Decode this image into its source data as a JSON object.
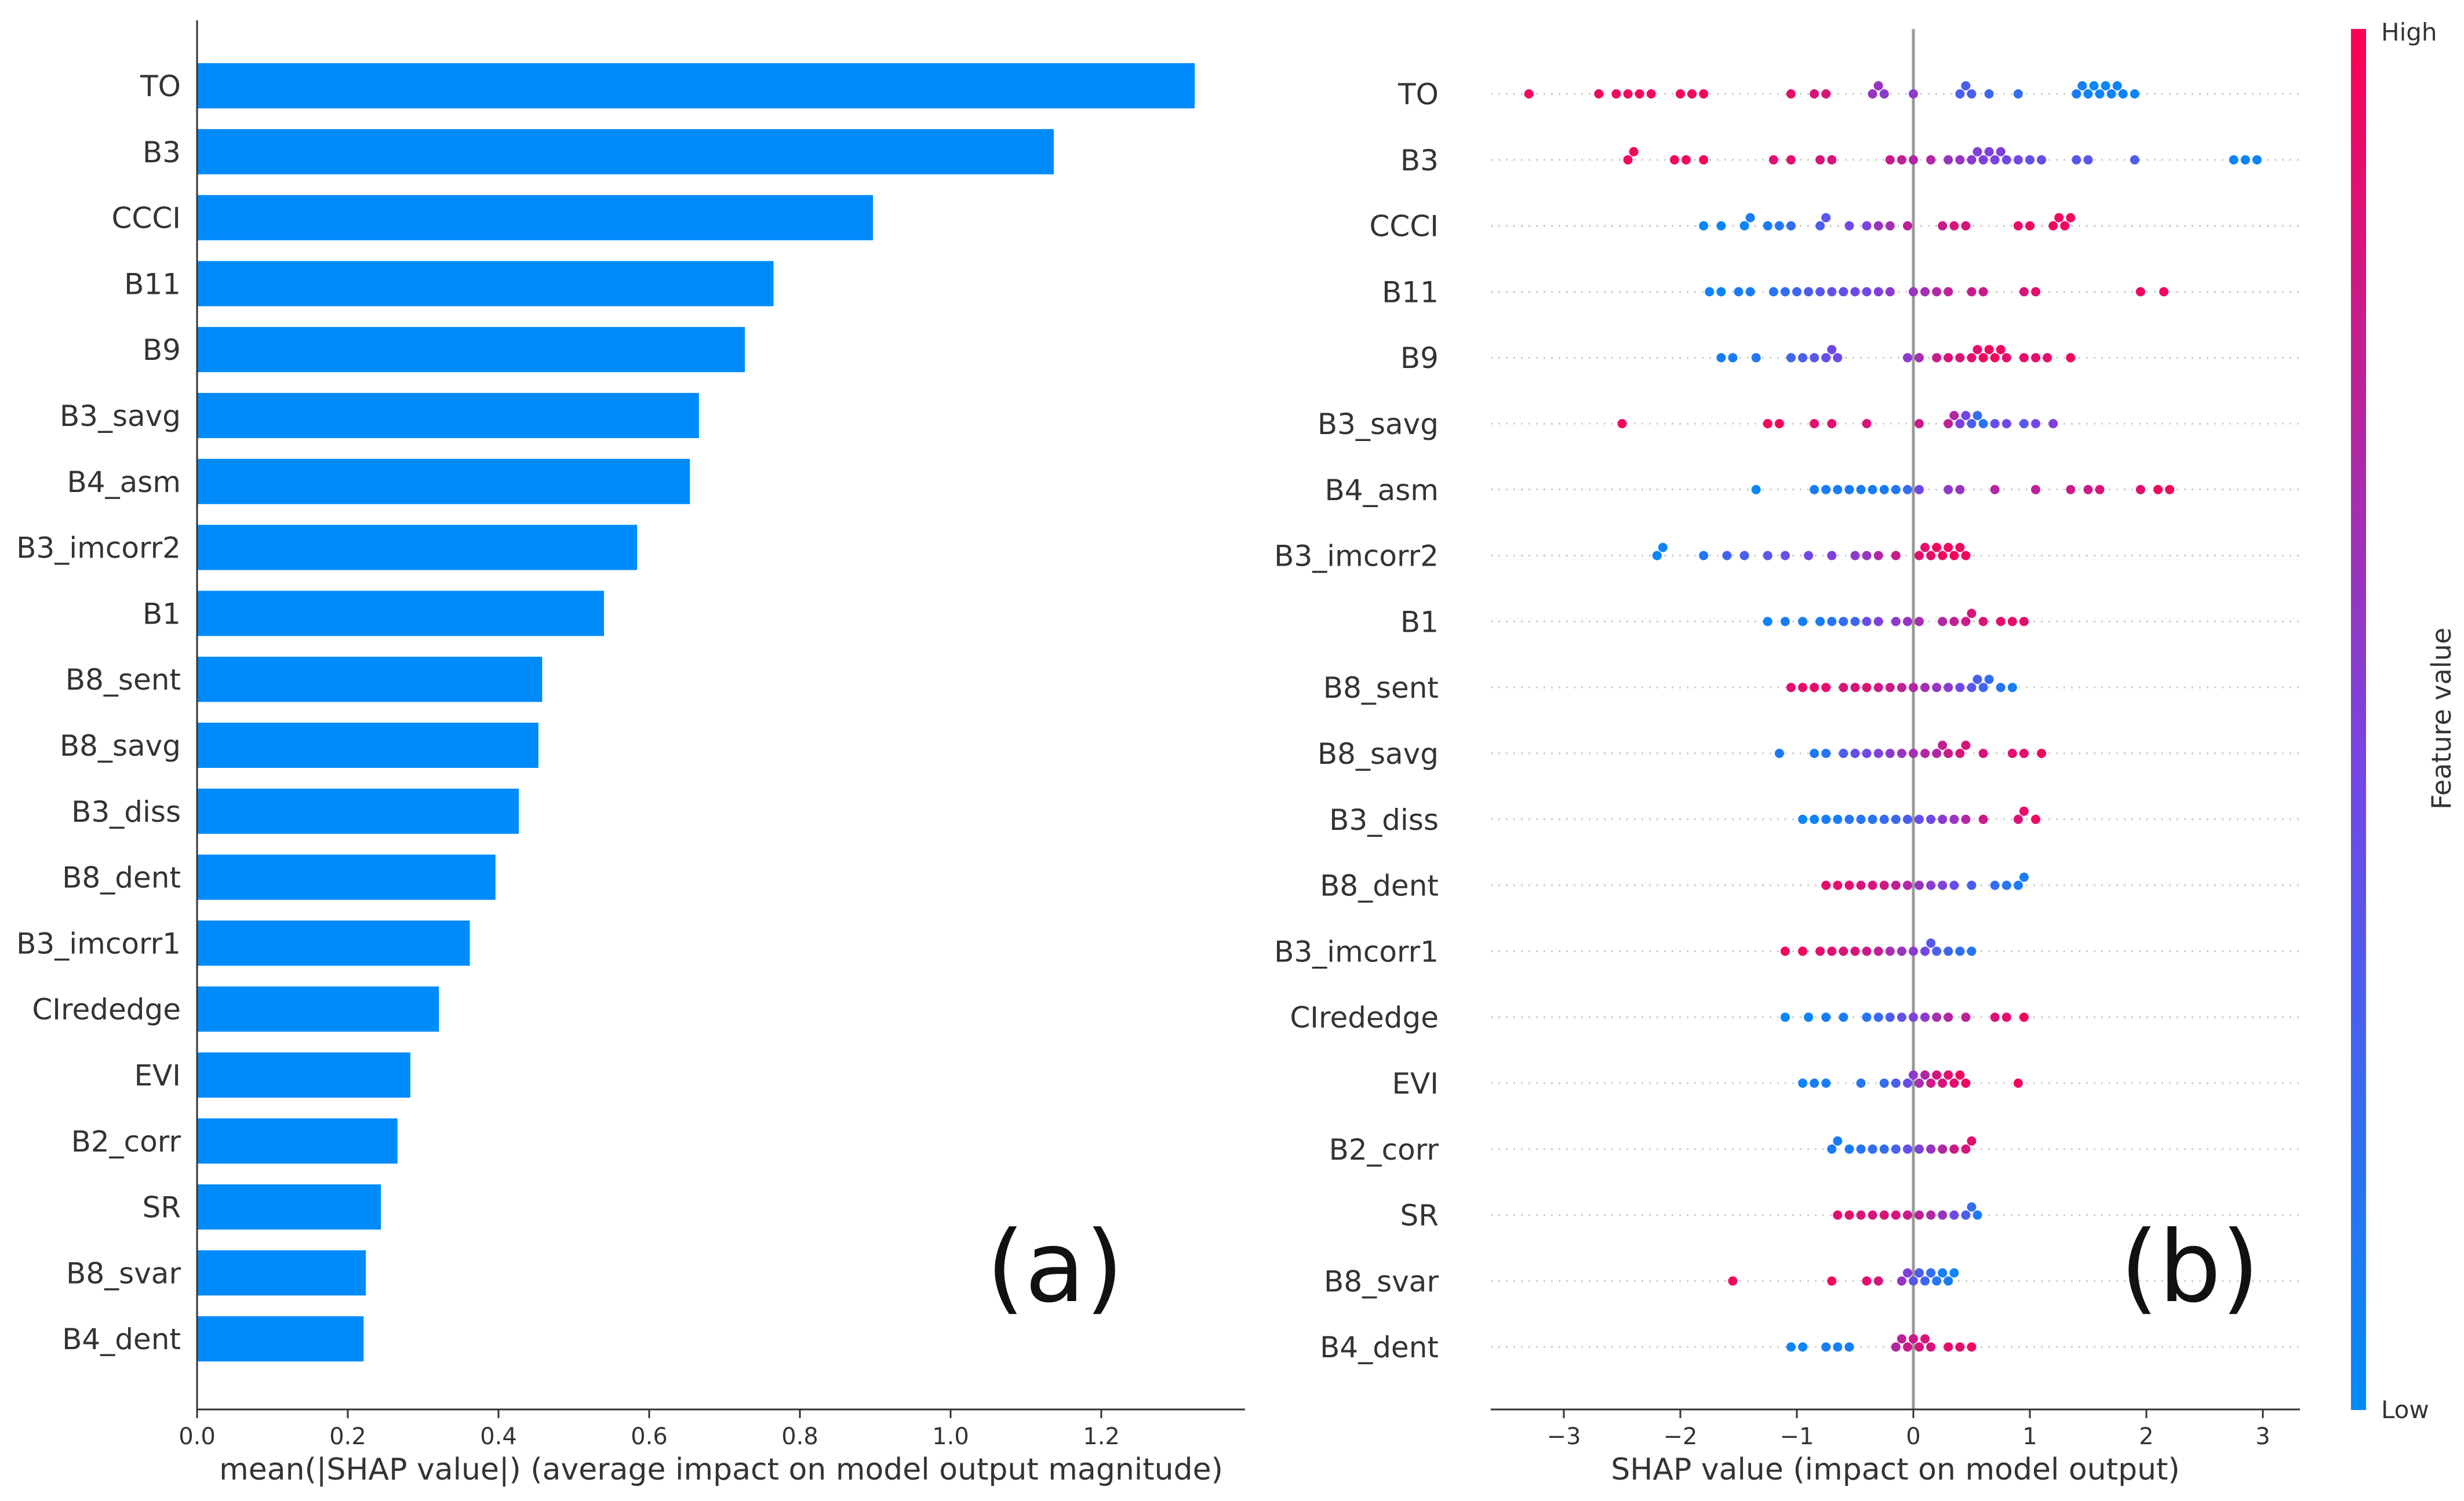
{
  "chart_data": [
    {
      "type": "bar",
      "panel_label": "(a)",
      "orientation": "horizontal",
      "categories": [
        "TO",
        "B3",
        "CCCI",
        "B11",
        "B9",
        "B3_savg",
        "B4_asm",
        "B3_imcorr2",
        "B1",
        "B8_sent",
        "B8_savg",
        "B3_diss",
        "B8_dent",
        "B3_imcorr1",
        "CIrededge",
        "EVI",
        "B2_corr",
        "SR",
        "B8_svar",
        "B4_dent"
      ],
      "values": [
        1.324,
        1.137,
        0.897,
        0.765,
        0.727,
        0.666,
        0.654,
        0.584,
        0.54,
        0.458,
        0.453,
        0.427,
        0.396,
        0.362,
        0.321,
        0.283,
        0.266,
        0.244,
        0.224,
        0.221
      ],
      "xlabel": "mean(|SHAP value|) (average impact on model output magnitude)",
      "ylabel": "",
      "xlim": [
        0,
        1.39
      ],
      "xticks": [
        "0.0",
        "0.2",
        "0.4",
        "0.6",
        "0.8",
        "1.0",
        "1.2"
      ],
      "grid": false,
      "bar_color": "#008bfb"
    },
    {
      "type": "scatter",
      "subtype": "beeswarm",
      "panel_label": "(b)",
      "categories": [
        "TO",
        "B3",
        "CCCI",
        "B11",
        "B9",
        "B3_savg",
        "B4_asm",
        "B3_imcorr2",
        "B1",
        "B8_sent",
        "B8_savg",
        "B3_diss",
        "B8_dent",
        "B3_imcorr1",
        "CIrededge",
        "EVI",
        "B2_corr",
        "SR",
        "B8_svar",
        "B4_dent"
      ],
      "xlabel": "SHAP value (impact on model output)",
      "xlim": [
        -3.6,
        3.3
      ],
      "xticks": [
        "−3",
        "−2",
        "−1",
        "0",
        "1",
        "2",
        "3"
      ],
      "colorbar": {
        "title": "Feature value",
        "high_label": "High",
        "low_label": "Low",
        "high_color": "#ff0052",
        "low_color": "#008bfb"
      },
      "series": [
        {
          "name": "TO",
          "shap": [
            -3.3,
            -2.7,
            -2.55,
            -2.45,
            -2.35,
            -2.25,
            -2.0,
            -1.9,
            -1.8,
            -1.05,
            -0.85,
            -0.75,
            -0.35,
            -0.3,
            -0.25,
            0.0,
            0.4,
            0.45,
            0.5,
            0.65,
            0.9,
            1.4,
            1.45,
            1.5,
            1.55,
            1.6,
            1.65,
            1.7,
            1.75,
            1.8,
            1.9
          ],
          "feature_value": [
            0.95,
            0.95,
            0.95,
            0.95,
            0.95,
            0.95,
            0.95,
            0.95,
            0.95,
            0.9,
            0.85,
            0.85,
            0.6,
            0.6,
            0.55,
            0.55,
            0.3,
            0.3,
            0.3,
            0.25,
            0.2,
            0.1,
            0.1,
            0.05,
            0.05,
            0.05,
            0.05,
            0.05,
            0.05,
            0.05,
            0.05
          ]
        },
        {
          "name": "B3",
          "shap": [
            -2.45,
            -2.4,
            -2.05,
            -1.95,
            -1.8,
            -1.2,
            -1.05,
            -0.8,
            -0.7,
            -0.2,
            -0.1,
            0.0,
            0.15,
            0.3,
            0.4,
            0.5,
            0.55,
            0.6,
            0.65,
            0.7,
            0.75,
            0.8,
            0.9,
            1.0,
            1.1,
            1.4,
            1.5,
            1.9,
            2.75,
            2.85,
            2.95
          ],
          "feature_value": [
            0.95,
            0.95,
            0.95,
            0.95,
            0.95,
            0.9,
            0.9,
            0.85,
            0.85,
            0.8,
            0.75,
            0.7,
            0.7,
            0.6,
            0.6,
            0.55,
            0.5,
            0.5,
            0.5,
            0.5,
            0.5,
            0.45,
            0.45,
            0.4,
            0.4,
            0.35,
            0.35,
            0.3,
            0.05,
            0.05,
            0.05
          ]
        },
        {
          "name": "CCCI",
          "shap": [
            -1.8,
            -1.65,
            -1.45,
            -1.4,
            -1.25,
            -1.15,
            -1.05,
            -0.8,
            -0.75,
            -0.55,
            -0.4,
            -0.3,
            -0.2,
            -0.05,
            0.25,
            0.35,
            0.45,
            0.9,
            1.0,
            1.2,
            1.25,
            1.3,
            1.35
          ],
          "feature_value": [
            0.05,
            0.05,
            0.05,
            0.1,
            0.1,
            0.15,
            0.2,
            0.3,
            0.35,
            0.45,
            0.5,
            0.6,
            0.65,
            0.75,
            0.8,
            0.85,
            0.85,
            0.9,
            0.95,
            0.95,
            0.95,
            0.95,
            0.95
          ]
        },
        {
          "name": "B11",
          "shap": [
            -1.75,
            -1.65,
            -1.5,
            -1.4,
            -1.2,
            -1.1,
            -1.0,
            -0.9,
            -0.8,
            -0.7,
            -0.6,
            -0.5,
            -0.4,
            -0.3,
            -0.2,
            0.0,
            0.1,
            0.2,
            0.3,
            0.5,
            0.6,
            0.95,
            1.05,
            1.95,
            2.15
          ],
          "feature_value": [
            0.05,
            0.05,
            0.1,
            0.1,
            0.15,
            0.2,
            0.25,
            0.3,
            0.35,
            0.4,
            0.4,
            0.45,
            0.45,
            0.5,
            0.55,
            0.6,
            0.65,
            0.7,
            0.75,
            0.8,
            0.8,
            0.85,
            0.9,
            0.95,
            0.95
          ]
        },
        {
          "name": "B9",
          "shap": [
            -1.65,
            -1.55,
            -1.35,
            -1.05,
            -0.95,
            -0.85,
            -0.75,
            -0.7,
            -0.65,
            -0.05,
            0.05,
            0.2,
            0.3,
            0.4,
            0.5,
            0.55,
            0.6,
            0.65,
            0.7,
            0.75,
            0.8,
            0.95,
            1.05,
            1.15,
            1.35
          ],
          "feature_value": [
            0.1,
            0.1,
            0.15,
            0.25,
            0.3,
            0.35,
            0.4,
            0.45,
            0.45,
            0.55,
            0.65,
            0.8,
            0.85,
            0.85,
            0.9,
            0.9,
            0.95,
            0.95,
            0.95,
            0.95,
            0.9,
            0.9,
            0.9,
            0.9,
            0.95
          ]
        },
        {
          "name": "B3_savg",
          "shap": [
            -2.5,
            -1.25,
            -1.15,
            -0.85,
            -0.7,
            -0.4,
            0.05,
            0.3,
            0.35,
            0.4,
            0.45,
            0.5,
            0.55,
            0.6,
            0.7,
            0.8,
            0.95,
            1.05,
            1.2
          ],
          "feature_value": [
            0.95,
            0.95,
            0.95,
            0.9,
            0.9,
            0.85,
            0.8,
            0.75,
            0.7,
            0.5,
            0.45,
            0.3,
            0.2,
            0.15,
            0.4,
            0.45,
            0.35,
            0.45,
            0.5
          ]
        },
        {
          "name": "B4_asm",
          "shap": [
            -1.35,
            -0.85,
            -0.75,
            -0.65,
            -0.55,
            -0.45,
            -0.35,
            -0.25,
            -0.15,
            -0.05,
            0.05,
            0.3,
            0.4,
            0.7,
            1.05,
            1.35,
            1.5,
            1.6,
            1.95,
            2.1,
            2.2
          ],
          "feature_value": [
            0.05,
            0.1,
            0.1,
            0.1,
            0.1,
            0.1,
            0.1,
            0.1,
            0.15,
            0.2,
            0.45,
            0.55,
            0.6,
            0.7,
            0.75,
            0.8,
            0.8,
            0.85,
            0.9,
            0.95,
            0.95
          ]
        },
        {
          "name": "B3_imcorr2",
          "shap": [
            -2.2,
            -2.15,
            -1.8,
            -1.6,
            -1.45,
            -1.25,
            -1.1,
            -0.9,
            -0.7,
            -0.5,
            -0.4,
            -0.3,
            -0.15,
            0.05,
            0.1,
            0.15,
            0.2,
            0.25,
            0.3,
            0.35,
            0.4,
            0.45
          ],
          "feature_value": [
            0.05,
            0.05,
            0.15,
            0.25,
            0.3,
            0.35,
            0.4,
            0.45,
            0.5,
            0.55,
            0.6,
            0.7,
            0.8,
            0.9,
            0.9,
            0.9,
            0.95,
            0.95,
            0.95,
            0.95,
            0.95,
            0.95
          ]
        },
        {
          "name": "B1",
          "shap": [
            -1.25,
            -1.1,
            -0.95,
            -0.8,
            -0.7,
            -0.6,
            -0.5,
            -0.4,
            -0.3,
            -0.15,
            -0.05,
            0.05,
            0.25,
            0.35,
            0.45,
            0.5,
            0.6,
            0.75,
            0.85,
            0.95
          ],
          "feature_value": [
            0.05,
            0.1,
            0.1,
            0.1,
            0.15,
            0.2,
            0.25,
            0.4,
            0.5,
            0.55,
            0.6,
            0.65,
            0.7,
            0.75,
            0.8,
            0.85,
            0.85,
            0.9,
            0.9,
            0.9
          ]
        },
        {
          "name": "B8_sent",
          "shap": [
            -1.05,
            -0.95,
            -0.85,
            -0.75,
            -0.6,
            -0.5,
            -0.4,
            -0.3,
            -0.2,
            -0.1,
            0.0,
            0.1,
            0.2,
            0.3,
            0.4,
            0.5,
            0.55,
            0.6,
            0.65,
            0.75,
            0.85
          ],
          "feature_value": [
            0.9,
            0.9,
            0.9,
            0.9,
            0.85,
            0.85,
            0.85,
            0.8,
            0.8,
            0.75,
            0.7,
            0.65,
            0.6,
            0.55,
            0.45,
            0.35,
            0.3,
            0.25,
            0.2,
            0.15,
            0.1
          ]
        },
        {
          "name": "B8_savg",
          "shap": [
            -1.15,
            -0.85,
            -0.75,
            -0.6,
            -0.5,
            -0.4,
            -0.3,
            -0.2,
            -0.1,
            0.0,
            0.1,
            0.2,
            0.25,
            0.3,
            0.4,
            0.45,
            0.6,
            0.85,
            0.95,
            1.1
          ],
          "feature_value": [
            0.1,
            0.1,
            0.15,
            0.3,
            0.4,
            0.45,
            0.5,
            0.55,
            0.6,
            0.65,
            0.7,
            0.7,
            0.75,
            0.8,
            0.85,
            0.85,
            0.85,
            0.9,
            0.9,
            0.95
          ]
        },
        {
          "name": "B3_diss",
          "shap": [
            -0.95,
            -0.85,
            -0.75,
            -0.65,
            -0.55,
            -0.45,
            -0.35,
            -0.25,
            -0.15,
            -0.05,
            0.05,
            0.15,
            0.25,
            0.35,
            0.45,
            0.6,
            0.9,
            0.95,
            1.05
          ],
          "feature_value": [
            0.05,
            0.05,
            0.1,
            0.1,
            0.15,
            0.15,
            0.15,
            0.2,
            0.25,
            0.3,
            0.4,
            0.45,
            0.55,
            0.6,
            0.7,
            0.8,
            0.85,
            0.9,
            0.95
          ]
        },
        {
          "name": "B8_dent",
          "shap": [
            -0.75,
            -0.65,
            -0.55,
            -0.45,
            -0.35,
            -0.25,
            -0.15,
            -0.05,
            0.05,
            0.15,
            0.25,
            0.35,
            0.5,
            0.7,
            0.8,
            0.9,
            0.95
          ],
          "feature_value": [
            0.9,
            0.9,
            0.9,
            0.85,
            0.85,
            0.8,
            0.75,
            0.7,
            0.6,
            0.55,
            0.5,
            0.4,
            0.3,
            0.2,
            0.15,
            0.1,
            0.1
          ]
        },
        {
          "name": "B3_imcorr1",
          "shap": [
            -1.1,
            -0.95,
            -0.8,
            -0.7,
            -0.6,
            -0.5,
            -0.4,
            -0.3,
            -0.2,
            -0.1,
            0.0,
            0.1,
            0.15,
            0.2,
            0.3,
            0.4,
            0.5
          ],
          "feature_value": [
            0.95,
            0.95,
            0.9,
            0.9,
            0.85,
            0.85,
            0.8,
            0.75,
            0.65,
            0.6,
            0.55,
            0.45,
            0.35,
            0.3,
            0.25,
            0.2,
            0.15
          ]
        },
        {
          "name": "CIrededge",
          "shap": [
            -1.1,
            -0.9,
            -0.75,
            -0.6,
            -0.4,
            -0.3,
            -0.2,
            -0.1,
            0.0,
            0.1,
            0.2,
            0.3,
            0.45,
            0.7,
            0.8,
            0.95
          ],
          "feature_value": [
            0.05,
            0.05,
            0.1,
            0.1,
            0.15,
            0.2,
            0.3,
            0.4,
            0.5,
            0.55,
            0.65,
            0.7,
            0.75,
            0.85,
            0.9,
            0.95
          ]
        },
        {
          "name": "EVI",
          "shap": [
            -0.95,
            -0.85,
            -0.75,
            -0.45,
            -0.25,
            -0.15,
            -0.05,
            0.0,
            0.05,
            0.1,
            0.15,
            0.2,
            0.25,
            0.3,
            0.35,
            0.4,
            0.45,
            0.9
          ],
          "feature_value": [
            0.05,
            0.1,
            0.1,
            0.15,
            0.2,
            0.3,
            0.4,
            0.55,
            0.65,
            0.7,
            0.8,
            0.85,
            0.85,
            0.9,
            0.9,
            0.95,
            0.95,
            0.95
          ]
        },
        {
          "name": "B2_corr",
          "shap": [
            -0.7,
            -0.65,
            -0.55,
            -0.45,
            -0.35,
            -0.25,
            -0.15,
            -0.05,
            0.05,
            0.15,
            0.25,
            0.35,
            0.45,
            0.5
          ],
          "feature_value": [
            0.1,
            0.1,
            0.1,
            0.15,
            0.2,
            0.2,
            0.3,
            0.4,
            0.5,
            0.6,
            0.7,
            0.8,
            0.85,
            0.9
          ]
        },
        {
          "name": "SR",
          "shap": [
            -0.65,
            -0.55,
            -0.45,
            -0.35,
            -0.25,
            -0.15,
            -0.05,
            0.05,
            0.15,
            0.25,
            0.35,
            0.45,
            0.5,
            0.55
          ],
          "feature_value": [
            0.9,
            0.9,
            0.85,
            0.85,
            0.85,
            0.85,
            0.8,
            0.75,
            0.7,
            0.6,
            0.45,
            0.3,
            0.2,
            0.1
          ]
        },
        {
          "name": "B8_svar",
          "shap": [
            -1.55,
            -0.7,
            -0.4,
            -0.3,
            -0.1,
            -0.05,
            0.0,
            0.05,
            0.1,
            0.15,
            0.2,
            0.25,
            0.3,
            0.35
          ],
          "feature_value": [
            0.95,
            0.95,
            0.9,
            0.85,
            0.6,
            0.5,
            0.35,
            0.3,
            0.25,
            0.2,
            0.15,
            0.1,
            0.1,
            0.05
          ]
        },
        {
          "name": "B4_dent",
          "shap": [
            -1.05,
            -0.95,
            -0.75,
            -0.65,
            -0.55,
            -0.15,
            -0.1,
            -0.05,
            0.0,
            0.05,
            0.1,
            0.15,
            0.3,
            0.4,
            0.5
          ],
          "feature_value": [
            0.05,
            0.05,
            0.1,
            0.1,
            0.1,
            0.7,
            0.75,
            0.8,
            0.8,
            0.85,
            0.85,
            0.85,
            0.9,
            0.9,
            0.95
          ]
        }
      ]
    }
  ]
}
